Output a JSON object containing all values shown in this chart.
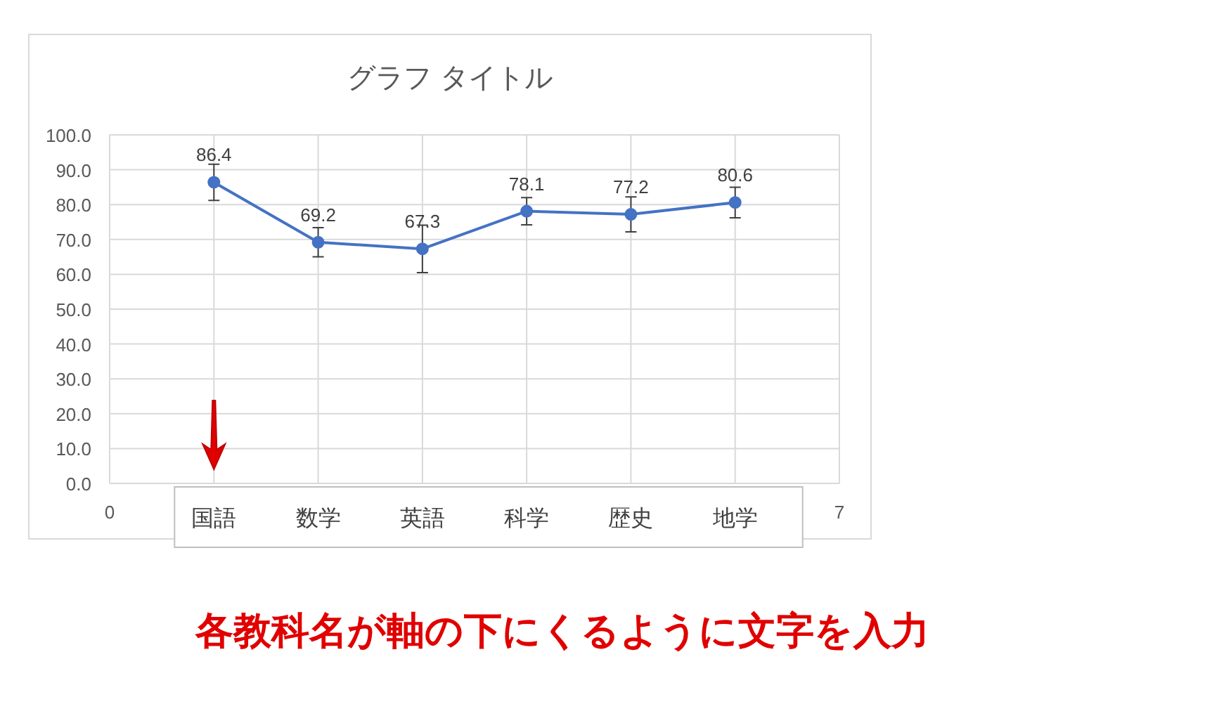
{
  "chart_data": {
    "type": "line",
    "title": "グラフ タイトル",
    "x": [
      1,
      2,
      3,
      4,
      5,
      6
    ],
    "series": [
      {
        "color": "#4472c4",
        "values": [
          86.4,
          69.2,
          67.3,
          78.1,
          77.2,
          80.6
        ],
        "errors": [
          5.2,
          4.2,
          6.8,
          3.9,
          5,
          4.4
        ]
      }
    ],
    "xlim": [
      0,
      7
    ],
    "xticks": [
      0,
      {
        "value": 1,
        "label": "国語"
      },
      {
        "value": 2,
        "label": "数学"
      },
      {
        "value": 3,
        "label": "英語"
      },
      {
        "value": 4,
        "label": "科学"
      },
      {
        "value": 5,
        "label": "歴史"
      },
      {
        "value": 6,
        "label": "地学"
      },
      7
    ],
    "ylim": [
      0,
      100
    ],
    "yticks": [
      {
        "value": 0,
        "label": "0.0"
      },
      {
        "value": 10,
        "label": "10.0"
      },
      {
        "value": 20,
        "label": "20.0"
      },
      {
        "value": 30,
        "label": "30.0"
      },
      {
        "value": 40,
        "label": "40.0"
      },
      {
        "value": 50,
        "label": "50.0"
      },
      {
        "value": 60,
        "label": "60.0"
      },
      {
        "value": 70,
        "label": "70.0"
      },
      {
        "value": 80,
        "label": "80.0"
      },
      {
        "value": 90,
        "label": "90.0"
      },
      {
        "value": 100,
        "label": "100.0"
      }
    ],
    "grid": true,
    "marker": "circle",
    "line_style": "solid",
    "data_labels": true,
    "annotations": [
      "各教科名が軸の下にくるように文字を入力"
    ]
  }
}
